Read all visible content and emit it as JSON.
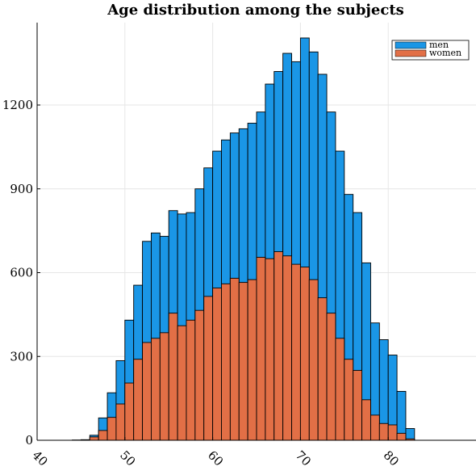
{
  "chart_data": {
    "type": "bar",
    "title": "Age distribution among the subjects",
    "xlabel": "",
    "ylabel": "",
    "stacked": false,
    "bin_width": 1,
    "xlim": [
      40,
      90
    ],
    "ylim": [
      0,
      1440
    ],
    "xticks": [
      40,
      50,
      60,
      70,
      80
    ],
    "yticks": [
      0,
      300,
      600,
      900,
      1200
    ],
    "grid": true,
    "legend_position": "top-right",
    "colors": {
      "men": "#1a96e6",
      "women": "#e26f46",
      "edge": "#000000"
    },
    "x": [
      44,
      45,
      46,
      47,
      48,
      49,
      50,
      51,
      52,
      53,
      54,
      55,
      56,
      57,
      58,
      59,
      60,
      61,
      62,
      63,
      64,
      65,
      66,
      67,
      68,
      69,
      70,
      71,
      72,
      73,
      74,
      75,
      76,
      77,
      78,
      79,
      80,
      81,
      82
    ],
    "series": [
      {
        "name": "men",
        "values": [
          1,
          2,
          18,
          80,
          170,
          285,
          430,
          555,
          712,
          742,
          730,
          822,
          810,
          815,
          900,
          975,
          1035,
          1075,
          1100,
          1115,
          1135,
          1175,
          1275,
          1320,
          1385,
          1355,
          1440,
          1390,
          1310,
          1175,
          1035,
          880,
          815,
          635,
          420,
          360,
          305,
          175,
          42
        ]
      },
      {
        "name": "women",
        "values": [
          0,
          1,
          12,
          35,
          82,
          130,
          205,
          290,
          350,
          365,
          385,
          455,
          410,
          430,
          465,
          515,
          545,
          560,
          580,
          565,
          575,
          655,
          650,
          675,
          660,
          630,
          620,
          575,
          510,
          455,
          365,
          290,
          250,
          145,
          90,
          60,
          55,
          25,
          5
        ]
      }
    ]
  }
}
